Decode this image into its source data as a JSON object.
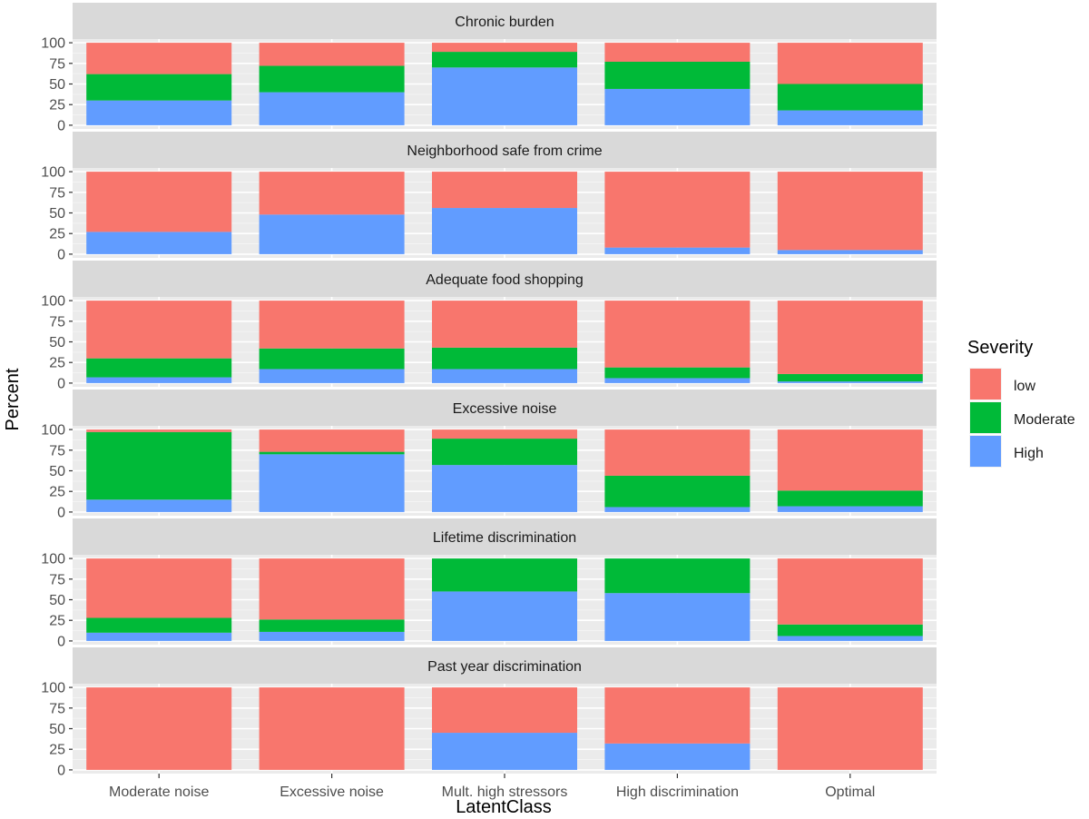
{
  "chart_data": {
    "type": "bar",
    "stacked": true,
    "facet_layout": "rows",
    "xlabel": "LatentClass",
    "ylabel": "Percent",
    "ylim": [
      0,
      100
    ],
    "y_ticks": [
      0,
      25,
      50,
      75,
      100
    ],
    "grid": true,
    "legend": {
      "title": "Severity",
      "position": "right",
      "entries": [
        {
          "name": "low",
          "color": "#F8766D"
        },
        {
          "name": "Moderate",
          "color": "#00BA38"
        },
        {
          "name": "High",
          "color": "#619CFF"
        }
      ]
    },
    "categories": [
      "Moderate noise",
      "Excessive noise",
      "Mult. high stressors",
      "High discrimination",
      "Optimal"
    ],
    "stack_order": [
      "High",
      "Moderate",
      "low"
    ],
    "facets": [
      {
        "title": "Chronic burden",
        "series": [
          {
            "name": "High",
            "values": [
              30,
              40,
              70,
              44,
              18
            ]
          },
          {
            "name": "Moderate",
            "values": [
              32,
              32,
              19,
              33,
              32
            ]
          },
          {
            "name": "low",
            "values": [
              38,
              28,
              11,
              23,
              50
            ]
          }
        ]
      },
      {
        "title": "Neighborhood safe from crime",
        "series": [
          {
            "name": "High",
            "values": [
              27,
              48,
              56,
              8,
              5
            ]
          },
          {
            "name": "Moderate",
            "values": [
              0,
              0,
              0,
              0,
              0
            ]
          },
          {
            "name": "low",
            "values": [
              73,
              52,
              44,
              92,
              95
            ]
          }
        ]
      },
      {
        "title": "Adequate food shopping",
        "series": [
          {
            "name": "High",
            "values": [
              7,
              17,
              17,
              6,
              2
            ]
          },
          {
            "name": "Moderate",
            "values": [
              23,
              25,
              26,
              13,
              9
            ]
          },
          {
            "name": "low",
            "values": [
              70,
              58,
              57,
              81,
              89
            ]
          }
        ]
      },
      {
        "title": "Excessive noise",
        "series": [
          {
            "name": "High",
            "values": [
              15,
              70,
              57,
              6,
              7
            ]
          },
          {
            "name": "Moderate",
            "values": [
              82,
              3,
              32,
              38,
              19
            ]
          },
          {
            "name": "low",
            "values": [
              3,
              27,
              11,
              56,
              74
            ]
          }
        ]
      },
      {
        "title": "Lifetime discrimination",
        "series": [
          {
            "name": "High",
            "values": [
              10,
              11,
              60,
              58,
              6
            ]
          },
          {
            "name": "Moderate",
            "values": [
              18,
              15,
              40,
              42,
              14
            ]
          },
          {
            "name": "low",
            "values": [
              72,
              74,
              0,
              0,
              80
            ]
          }
        ]
      },
      {
        "title": "Past year discrimination",
        "series": [
          {
            "name": "High",
            "values": [
              0,
              0,
              45,
              32,
              0
            ]
          },
          {
            "name": "Moderate",
            "values": [
              0,
              0,
              0,
              0,
              0
            ]
          },
          {
            "name": "low",
            "values": [
              100,
              100,
              55,
              68,
              100
            ]
          }
        ]
      }
    ]
  }
}
